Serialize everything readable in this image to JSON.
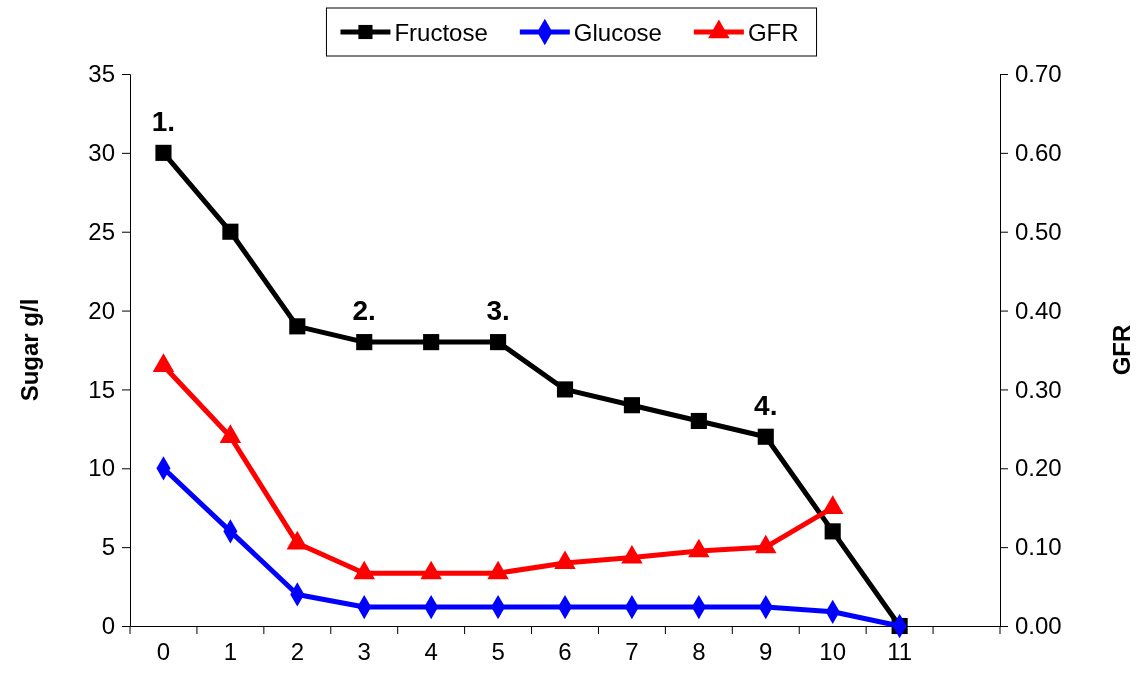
{
  "chart_data": {
    "type": "line",
    "ylabel": "Sugar g/l",
    "y2label": "GFR",
    "categories": [
      "0",
      "1",
      "2",
      "3",
      "4",
      "5",
      "6",
      "7",
      "8",
      "9",
      "10",
      "11",
      null
    ],
    "ylim": [
      0,
      35
    ],
    "yticks": [
      0,
      5,
      10,
      15,
      20,
      25,
      30,
      35
    ],
    "y2lim": [
      0,
      0.7
    ],
    "y2ticks": [
      {
        "value": 0,
        "label": "0.00"
      },
      {
        "value": 0.1,
        "label": "0.10"
      },
      {
        "value": 0.2,
        "label": "0.20"
      },
      {
        "value": 0.3,
        "label": "0.30"
      },
      {
        "value": 0.4,
        "label": "0.40"
      },
      {
        "value": 0.5,
        "label": "0.50"
      },
      {
        "value": 0.6,
        "label": "0.60"
      },
      {
        "value": 0.7,
        "label": "0.70"
      }
    ],
    "legend": "top",
    "grid": false,
    "line_style": "solid",
    "series": [
      {
        "name": "Fructose",
        "color": "#000000",
        "marker": "square",
        "values": [
          30,
          25,
          19,
          18,
          18,
          18,
          15,
          14,
          13,
          12,
          6,
          0,
          null
        ]
      },
      {
        "name": "Glucose",
        "color": "#0000ff",
        "marker": "diamond",
        "values": [
          10,
          6,
          2,
          1.2,
          1.2,
          1.2,
          1.2,
          1.2,
          1.2,
          1.2,
          0.9,
          0,
          null
        ]
      },
      {
        "name": "GFR",
        "color": "#ff0000",
        "marker": "triangle",
        "axis": "y2",
        "values": [
          0.33,
          0.24,
          0.105,
          0.067,
          0.067,
          0.067,
          0.08,
          0.087,
          0.095,
          0.1,
          0.15,
          null,
          null
        ]
      }
    ],
    "annotations": [
      {
        "text": "1.",
        "x": "0",
        "y": 30
      },
      {
        "text": "2.",
        "x": "3",
        "y": 18
      },
      {
        "text": "3.",
        "x": "5",
        "y": 18
      },
      {
        "text": "4.",
        "x": "9",
        "y": 12
      }
    ]
  }
}
